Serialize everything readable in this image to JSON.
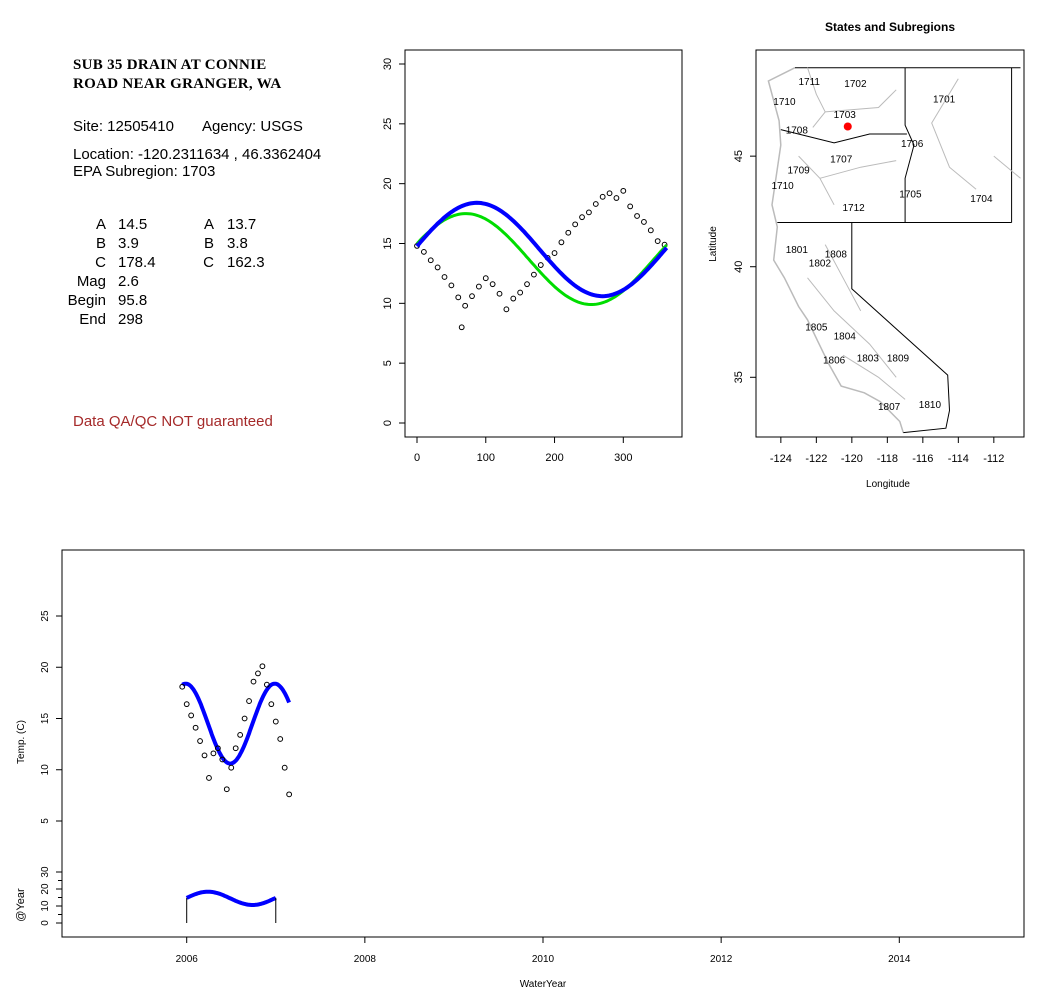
{
  "site": {
    "name_line1": "SUB 35 DRAIN AT CONNIE",
    "name_line2": "ROAD NEAR GRANGER, WA",
    "site_text": "Site: 12505410",
    "agency_text": "Agency: USGS",
    "location_text": "Location: -120.2311634 , 46.3362404",
    "subregion_text": "EPA Subregion: 1703"
  },
  "params": {
    "left": [
      {
        "label": "A",
        "value": "14.5"
      },
      {
        "label": "B",
        "value": "3.9"
      },
      {
        "label": "C",
        "value": "178.4"
      },
      {
        "label": "Mag",
        "value": "2.6"
      },
      {
        "label": "Begin",
        "value": "95.8"
      },
      {
        "label": "End",
        "value": "298"
      }
    ],
    "right": [
      {
        "label": "A",
        "value": "13.7"
      },
      {
        "label": "B",
        "value": "3.8"
      },
      {
        "label": "C",
        "value": "162.3"
      }
    ]
  },
  "qa_note": "Data QA/QC NOT guaranteed",
  "colors": {
    "fit_blue": "#0000ff",
    "fit_green": "#00dd00",
    "site_marker": "#ff0000",
    "qa_text": "#a52a2a",
    "map_grey": "#bbbbbb"
  },
  "chart_data": [
    {
      "id": "seasonal",
      "type": "scatter",
      "xlim": [
        0,
        365
      ],
      "ylim": [
        0,
        30
      ],
      "x_ticks": [
        "0",
        "100",
        "200",
        "300"
      ],
      "y_ticks": [
        "0",
        "5",
        "10",
        "15",
        "20",
        "25",
        "30"
      ],
      "series": [
        {
          "kind": "points",
          "x": [
            0,
            10,
            20,
            30,
            40,
            50,
            60,
            65,
            70,
            80,
            90,
            100,
            110,
            120,
            130,
            140,
            150,
            160,
            170,
            180,
            190,
            200,
            210,
            220,
            230,
            240,
            250,
            260,
            270,
            280,
            290,
            300,
            310,
            320,
            330,
            340,
            350,
            360
          ],
          "y": [
            14.8,
            14.3,
            13.6,
            13.0,
            12.2,
            11.5,
            10.5,
            8.0,
            9.8,
            10.6,
            11.4,
            12.1,
            11.6,
            10.8,
            9.5,
            10.4,
            10.9,
            11.6,
            12.4,
            13.2,
            13.8,
            14.2,
            15.1,
            15.9,
            16.6,
            17.2,
            17.6,
            18.3,
            18.9,
            19.2,
            18.8,
            19.4,
            18.1,
            17.3,
            16.8,
            16.1,
            15.2,
            14.9
          ]
        },
        {
          "kind": "fit-blue",
          "A": 14.5,
          "B": 3.9,
          "C": 178.4
        },
        {
          "kind": "fit-green",
          "A": 13.7,
          "B": 3.8,
          "C": 162.3
        }
      ]
    },
    {
      "id": "map",
      "type": "map",
      "title": "States and Subregions",
      "xlabel": "Longitude",
      "ylabel": "Latitude",
      "xlim": [
        -125.4,
        -110.3
      ],
      "ylim": [
        32.3,
        49.8
      ],
      "x_ticks": [
        "-124",
        "-122",
        "-120",
        "-118",
        "-116",
        "-114",
        "-112"
      ],
      "y_ticks": [
        "35",
        "40",
        "45"
      ],
      "subregions": [
        {
          "label": "1711",
          "lon": -122.4,
          "lat": 48.4
        },
        {
          "label": "1710",
          "lon": -123.8,
          "lat": 47.5
        },
        {
          "label": "1702",
          "lon": -119.8,
          "lat": 48.3
        },
        {
          "label": "1701",
          "lon": -114.8,
          "lat": 47.6
        },
        {
          "label": "1703",
          "lon": -120.4,
          "lat": 46.9
        },
        {
          "label": "1708",
          "lon": -123.1,
          "lat": 46.2
        },
        {
          "label": "1706",
          "lon": -116.6,
          "lat": 45.6
        },
        {
          "label": "1707",
          "lon": -120.6,
          "lat": 44.9
        },
        {
          "label": "1709",
          "lon": -123.0,
          "lat": 44.4
        },
        {
          "label": "1710",
          "lon": -123.9,
          "lat": 43.7
        },
        {
          "label": "1705",
          "lon": -116.7,
          "lat": 43.3
        },
        {
          "label": "1704",
          "lon": -112.7,
          "lat": 43.1
        },
        {
          "label": "1712",
          "lon": -119.9,
          "lat": 42.7
        },
        {
          "label": "1801",
          "lon": -123.1,
          "lat": 40.8
        },
        {
          "label": "1808",
          "lon": -120.9,
          "lat": 40.6
        },
        {
          "label": "1802",
          "lon": -121.8,
          "lat": 40.2
        },
        {
          "label": "1805",
          "lon": -122.0,
          "lat": 37.3
        },
        {
          "label": "1804",
          "lon": -120.4,
          "lat": 36.9
        },
        {
          "label": "1806",
          "lon": -121.0,
          "lat": 35.8
        },
        {
          "label": "1803",
          "lon": -119.1,
          "lat": 35.9
        },
        {
          "label": "1809",
          "lon": -117.4,
          "lat": 35.9
        },
        {
          "label": "1810",
          "lon": -115.6,
          "lat": 33.8
        },
        {
          "label": "1807",
          "lon": -117.9,
          "lat": 33.7
        }
      ],
      "site_marker": {
        "lon": -120.23,
        "lat": 46.34
      }
    },
    {
      "id": "timeseries",
      "type": "scatter",
      "xlabel": "WaterYear",
      "ylabel": "Temp. (C)",
      "ylabel2": "@Year",
      "xlim": [
        2004.6,
        2015.4
      ],
      "ylim": [
        0,
        30
      ],
      "x_ticks": [
        "2006",
        "2008",
        "2010",
        "2012",
        "2014"
      ],
      "y_ticks": [
        "5",
        "10",
        "15",
        "20",
        "25"
      ],
      "y2_ticks": [
        "0",
        "10",
        "20",
        "30"
      ],
      "series": [
        {
          "kind": "points",
          "x": [
            2005.95,
            2006.0,
            2006.05,
            2006.1,
            2006.15,
            2006.2,
            2006.25,
            2006.3,
            2006.35,
            2006.4,
            2006.45,
            2006.5,
            2006.55,
            2006.6,
            2006.65,
            2006.7,
            2006.75,
            2006.8,
            2006.85,
            2006.9,
            2006.95,
            2007.0,
            2007.05,
            2007.1,
            2007.15
          ],
          "y": [
            18.1,
            16.4,
            15.3,
            14.1,
            12.8,
            11.4,
            9.2,
            11.6,
            12.1,
            11.0,
            8.1,
            10.2,
            12.1,
            13.4,
            15.0,
            16.7,
            18.6,
            19.4,
            20.1,
            18.3,
            16.4,
            14.7,
            13.0,
            10.2,
            7.6
          ]
        }
      ]
    }
  ]
}
